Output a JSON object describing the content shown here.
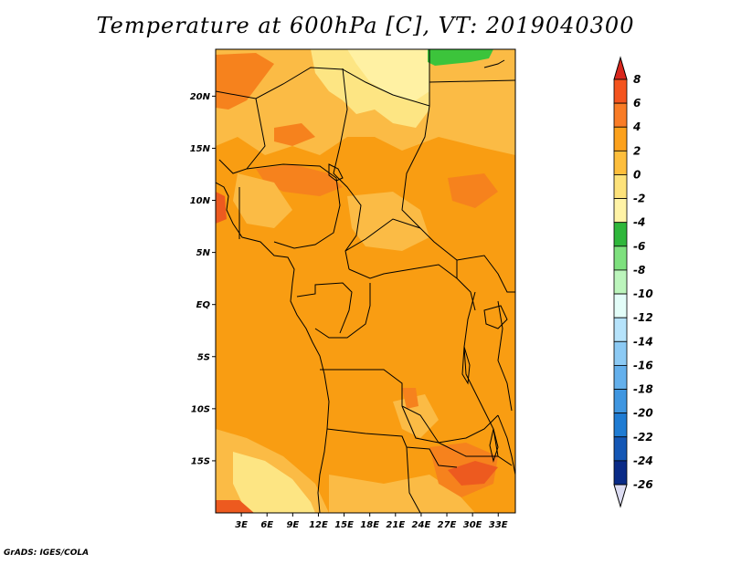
{
  "title": "Temperature at 600hPa [C], VT: 2019040300",
  "credit": "GrADS: IGES/COLA",
  "map": {
    "lat_labels": [
      "20N",
      "15N",
      "10N",
      "5N",
      "EQ",
      "5S",
      "10S",
      "15S"
    ],
    "lon_labels": [
      "3E",
      "6E",
      "9E",
      "12E",
      "15E",
      "18E",
      "21E",
      "24E",
      "27E",
      "30E",
      "33E"
    ],
    "lat_values": [
      20,
      15,
      10,
      5,
      0,
      -5,
      -10,
      -15
    ],
    "lon_values": [
      3,
      6,
      9,
      12,
      15,
      18,
      21,
      24,
      27,
      30,
      33
    ],
    "lat_range": [
      -20,
      24.5
    ],
    "lon_range": [
      0,
      35
    ]
  },
  "colorbar": {
    "labels": [
      "8",
      "6",
      "4",
      "2",
      "0",
      "-2",
      "-4",
      "-6",
      "-8",
      "-10",
      "-12",
      "-14",
      "-16",
      "-18",
      "-20",
      "-22",
      "-24",
      "-26"
    ],
    "colors": [
      "#e8311e",
      "#f4541e",
      "#f97c26",
      "#fca11c",
      "#fdbe3c",
      "#fde27a",
      "#fff3a6",
      "#2fb73b",
      "#7ee07e",
      "#bcf5bc",
      "#e3fdf8",
      "#b6e3fb",
      "#8ccaf4",
      "#64b0ec",
      "#3f96e0",
      "#1f7cd3",
      "#1457b5",
      "#0a2b87",
      "#0a1060"
    ],
    "top_cap_color": "#d9271d",
    "bottom_cap_color": "#dcdcf2"
  },
  "fields": {
    "background_color": "#f99d12",
    "warm_color": "#f6821d",
    "cool_color": "#fbbb45",
    "pale_color": "#fde583",
    "palest_color": "#fff1a3",
    "green_color": "#3cc43b",
    "border_color": "#000000"
  }
}
